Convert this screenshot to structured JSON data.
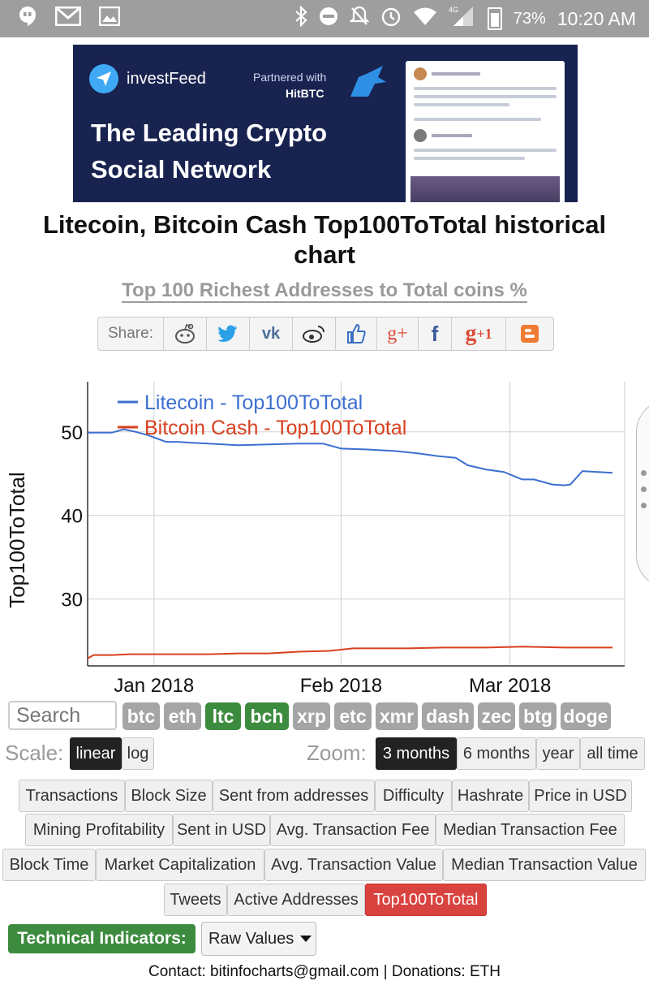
{
  "status_bar": {
    "battery": "73%",
    "time": "10:20 AM",
    "network": "4G"
  },
  "banner": {
    "brand": "investFeed",
    "partner_text": "Partnered with",
    "partner_name": "HitBTC",
    "tagline_line1": "The Leading Crypto",
    "tagline_line2": "Social Network"
  },
  "page": {
    "title": "Litecoin, Bitcoin Cash Top100ToTotal historical chart",
    "subtitle": "Top 100 Richest Addresses to Total coins %"
  },
  "share": {
    "label": "Share:",
    "icons": [
      "reddit-icon",
      "twitter-icon",
      "vk-icon",
      "weibo-icon",
      "like-icon",
      "google-plus-icon",
      "facebook-icon",
      "google-plus-one-icon",
      "blogger-icon"
    ],
    "colors": {
      "reddit": "#555555",
      "twitter": "#2aa0e6",
      "vk": "#4a6d96",
      "weibo": "#333333",
      "like": "#3b6fc4",
      "gplus": "#dd4b39",
      "facebook": "#3b5998",
      "blogger": "#f07b33"
    }
  },
  "chart_data": {
    "type": "line",
    "title": "",
    "xlabel": "",
    "ylabel": "Top100ToTotal",
    "x_ticks": [
      "Jan 2018",
      "Feb 2018",
      "Mar 2018"
    ],
    "y_ticks": [
      30,
      40,
      50
    ],
    "xlim": [
      "2017-12-21",
      "2018-03-20"
    ],
    "ylim": [
      22,
      56
    ],
    "grid": true,
    "legend_position": "top-left",
    "series": [
      {
        "name": "Litecoin - Top100ToTotal",
        "color": "#3c6fd0",
        "x": [
          "2017-12-21",
          "2017-12-25",
          "2017-12-27",
          "2017-12-29",
          "2017-12-31",
          "2018-01-03",
          "2018-01-05",
          "2018-01-07",
          "2018-01-10",
          "2018-01-15",
          "2018-01-20",
          "2018-01-25",
          "2018-01-29",
          "2018-02-01",
          "2018-02-05",
          "2018-02-10",
          "2018-02-14",
          "2018-02-17",
          "2018-02-20",
          "2018-02-22",
          "2018-02-25",
          "2018-02-28",
          "2018-03-03",
          "2018-03-05",
          "2018-03-08",
          "2018-03-10",
          "2018-03-11",
          "2018-03-13",
          "2018-03-18"
        ],
        "values": [
          49.9,
          49.9,
          50.3,
          50.0,
          49.6,
          48.8,
          48.8,
          48.7,
          48.6,
          48.4,
          48.5,
          48.6,
          48.6,
          48.0,
          47.9,
          47.7,
          47.4,
          47.1,
          46.9,
          46.0,
          45.5,
          45.2,
          44.3,
          44.3,
          43.7,
          43.6,
          43.7,
          45.3,
          45.1
        ]
      },
      {
        "name": "Bitcoin Cash - Top100ToTotal",
        "color": "#d9401f",
        "x": [
          "2017-12-21",
          "2017-12-22",
          "2017-12-25",
          "2017-12-28",
          "2018-01-01",
          "2018-01-05",
          "2018-01-10",
          "2018-01-15",
          "2018-01-20",
          "2018-01-25",
          "2018-01-30",
          "2018-02-03",
          "2018-02-07",
          "2018-02-12",
          "2018-02-18",
          "2018-02-25",
          "2018-03-03",
          "2018-03-10",
          "2018-03-18"
        ],
        "values": [
          22.9,
          23.3,
          23.3,
          23.4,
          23.4,
          23.4,
          23.4,
          23.5,
          23.5,
          23.7,
          23.8,
          24.1,
          24.1,
          24.1,
          24.2,
          24.2,
          24.3,
          24.2,
          24.2
        ]
      }
    ]
  },
  "coins": [
    "btc",
    "eth",
    "ltc",
    "bch",
    "xrp",
    "etc",
    "xmr",
    "dash",
    "zec",
    "btg",
    "doge"
  ],
  "coins_active": [
    "ltc",
    "bch"
  ],
  "search": {
    "placeholder": "Search"
  },
  "scale": {
    "label": "Scale:",
    "linear": "linear",
    "log": "log"
  },
  "zoom": {
    "label": "Zoom:",
    "options": [
      "3 months",
      "6 months",
      "year",
      "all time"
    ]
  },
  "metrics": {
    "row1": [
      "Transactions",
      "Block Size",
      "Sent from addresses",
      "Difficulty",
      "Hashrate",
      "Price in USD"
    ],
    "row2": [
      "Mining Profitability",
      "Sent in USD",
      "Avg. Transaction Fee",
      "Median Transaction Fee"
    ],
    "row3": [
      "Block Time",
      "Market Capitalization",
      "Avg. Transaction Value",
      "Median Transaction Value"
    ],
    "row4": [
      "Tweets",
      "Active Addresses",
      "Top100ToTotal"
    ]
  },
  "technical": {
    "label": "Technical Indicators:",
    "select_value": "Raw Values"
  },
  "footer": {
    "text": "Contact: bitinfocharts@gmail.com | Donations: ETH"
  }
}
